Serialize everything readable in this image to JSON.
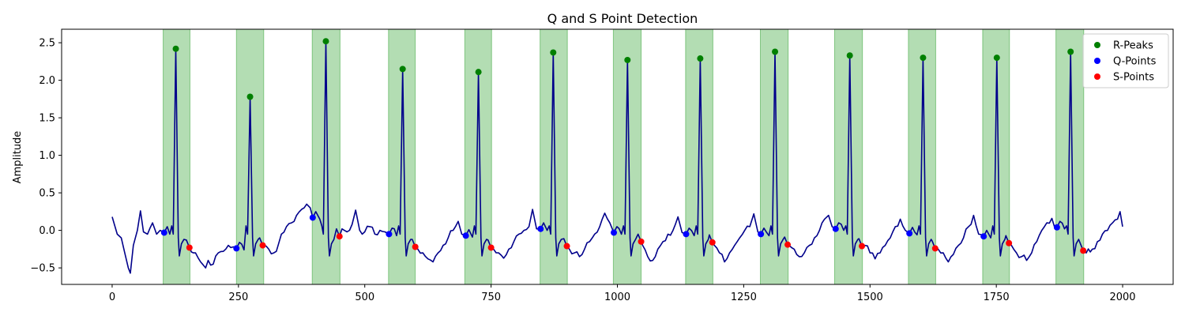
{
  "chart_data": {
    "type": "line",
    "title": "Q and S Point Detection",
    "xlabel": "",
    "ylabel": "Amplitude",
    "xlim": [
      -100,
      2100
    ],
    "ylim": [
      -0.72,
      2.68
    ],
    "xticks": [
      0,
      250,
      500,
      750,
      1000,
      1250,
      1500,
      1750,
      2000
    ],
    "yticks": [
      -0.5,
      0.0,
      0.5,
      1.0,
      1.5,
      2.0,
      2.5
    ],
    "ytick_labels": [
      "−0.5",
      "0.0",
      "0.5",
      "1.0",
      "1.5",
      "2.0",
      "2.5"
    ],
    "grid": false,
    "legend_position": "top-right",
    "colors": {
      "signal": "#00008b",
      "band": "#2ca02c",
      "r_peaks": "#008000",
      "q_points": "#0000ff",
      "s_points": "#ff0000"
    },
    "shaded_regions": [
      [
        101,
        154
      ],
      [
        246,
        300
      ],
      [
        396,
        451
      ],
      [
        547,
        600
      ],
      [
        698,
        751
      ],
      [
        847,
        901
      ],
      [
        992,
        1047
      ],
      [
        1135,
        1189
      ],
      [
        1283,
        1338
      ],
      [
        1430,
        1485
      ],
      [
        1576,
        1630
      ],
      [
        1723,
        1776
      ],
      [
        1868,
        1923
      ]
    ],
    "r_peaks": [
      [
        126,
        2.42
      ],
      [
        273,
        1.78
      ],
      [
        423,
        2.52
      ],
      [
        575,
        2.15
      ],
      [
        725,
        2.11
      ],
      [
        873,
        2.37
      ],
      [
        1020,
        2.27
      ],
      [
        1164,
        2.29
      ],
      [
        1312,
        2.38
      ],
      [
        1460,
        2.33
      ],
      [
        1605,
        2.3
      ],
      [
        1751,
        2.3
      ],
      [
        1897,
        2.38
      ]
    ],
    "q_points": [
      [
        103,
        -0.03
      ],
      [
        246,
        -0.24
      ],
      [
        397,
        0.17
      ],
      [
        548,
        -0.05
      ],
      [
        700,
        -0.07
      ],
      [
        848,
        0.02
      ],
      [
        993,
        -0.03
      ],
      [
        1136,
        -0.05
      ],
      [
        1284,
        -0.05
      ],
      [
        1432,
        0.02
      ],
      [
        1578,
        -0.04
      ],
      [
        1725,
        -0.08
      ],
      [
        1870,
        0.04
      ]
    ],
    "s_points": [
      [
        153,
        -0.23
      ],
      [
        298,
        -0.2
      ],
      [
        450,
        -0.08
      ],
      [
        600,
        -0.22
      ],
      [
        750,
        -0.23
      ],
      [
        900,
        -0.21
      ],
      [
        1047,
        -0.15
      ],
      [
        1188,
        -0.16
      ],
      [
        1337,
        -0.19
      ],
      [
        1484,
        -0.21
      ],
      [
        1629,
        -0.24
      ],
      [
        1775,
        -0.17
      ],
      [
        1922,
        -0.27
      ]
    ],
    "series": [
      {
        "name": "R-Peaks",
        "marker": "dot",
        "color": "#008000"
      },
      {
        "name": "Q-Points",
        "marker": "dot",
        "color": "#0000ff"
      },
      {
        "name": "S-Points",
        "marker": "dot",
        "color": "#ff0000"
      }
    ],
    "signal_baseline": [
      [
        0,
        0.18
      ],
      [
        10,
        -0.05
      ],
      [
        18,
        -0.1
      ],
      [
        25,
        -0.3
      ],
      [
        32,
        -0.5
      ],
      [
        36,
        -0.57
      ],
      [
        42,
        -0.2
      ],
      [
        50,
        0.0
      ],
      [
        56,
        0.26
      ],
      [
        62,
        -0.02
      ],
      [
        70,
        -0.05
      ],
      [
        80,
        0.1
      ],
      [
        88,
        -0.05
      ],
      [
        95,
        0.0
      ],
      [
        150,
        -0.25
      ],
      [
        165,
        -0.3
      ],
      [
        175,
        -0.42
      ],
      [
        185,
        -0.5
      ],
      [
        190,
        -0.4
      ],
      [
        200,
        -0.45
      ],
      [
        210,
        -0.3
      ],
      [
        220,
        -0.28
      ],
      [
        230,
        -0.2
      ],
      [
        240,
        -0.22
      ],
      [
        300,
        -0.2
      ],
      [
        310,
        -0.25
      ],
      [
        320,
        -0.3
      ],
      [
        325,
        -0.28
      ],
      [
        335,
        -0.05
      ],
      [
        345,
        0.05
      ],
      [
        355,
        0.1
      ],
      [
        365,
        0.2
      ],
      [
        375,
        0.28
      ],
      [
        380,
        0.3
      ],
      [
        385,
        0.35
      ],
      [
        392,
        0.3
      ],
      [
        455,
        0.02
      ],
      [
        465,
        -0.02
      ],
      [
        475,
        0.08
      ],
      [
        482,
        0.27
      ],
      [
        490,
        0.0
      ],
      [
        500,
        -0.02
      ],
      [
        510,
        0.05
      ],
      [
        520,
        -0.05
      ],
      [
        530,
        0.0
      ],
      [
        540,
        -0.02
      ],
      [
        605,
        -0.25
      ],
      [
        615,
        -0.3
      ],
      [
        625,
        -0.38
      ],
      [
        635,
        -0.42
      ],
      [
        645,
        -0.3
      ],
      [
        655,
        -0.2
      ],
      [
        665,
        -0.1
      ],
      [
        675,
        0.0
      ],
      [
        685,
        0.12
      ],
      [
        692,
        -0.05
      ],
      [
        755,
        -0.25
      ],
      [
        765,
        -0.3
      ],
      [
        775,
        -0.37
      ],
      [
        785,
        -0.25
      ],
      [
        795,
        -0.15
      ],
      [
        805,
        -0.05
      ],
      [
        815,
        0.0
      ],
      [
        825,
        0.05
      ],
      [
        832,
        0.28
      ],
      [
        840,
        0.02
      ],
      [
        905,
        -0.25
      ],
      [
        915,
        -0.3
      ],
      [
        925,
        -0.35
      ],
      [
        935,
        -0.25
      ],
      [
        945,
        -0.15
      ],
      [
        955,
        -0.05
      ],
      [
        965,
        0.05
      ],
      [
        975,
        0.23
      ],
      [
        985,
        0.1
      ],
      [
        1050,
        -0.2
      ],
      [
        1060,
        -0.35
      ],
      [
        1070,
        -0.4
      ],
      [
        1080,
        -0.25
      ],
      [
        1090,
        -0.15
      ],
      [
        1100,
        -0.05
      ],
      [
        1110,
        0.0
      ],
      [
        1120,
        0.18
      ],
      [
        1128,
        -0.03
      ],
      [
        1192,
        -0.2
      ],
      [
        1202,
        -0.3
      ],
      [
        1212,
        -0.42
      ],
      [
        1222,
        -0.3
      ],
      [
        1232,
        -0.2
      ],
      [
        1242,
        -0.1
      ],
      [
        1252,
        0.0
      ],
      [
        1262,
        0.05
      ],
      [
        1270,
        0.22
      ],
      [
        1278,
        -0.02
      ],
      [
        1340,
        -0.2
      ],
      [
        1350,
        -0.25
      ],
      [
        1360,
        -0.35
      ],
      [
        1370,
        -0.3
      ],
      [
        1380,
        -0.2
      ],
      [
        1390,
        -0.1
      ],
      [
        1400,
        0.0
      ],
      [
        1410,
        0.15
      ],
      [
        1418,
        0.2
      ],
      [
        1425,
        0.05
      ],
      [
        1490,
        -0.2
      ],
      [
        1500,
        -0.3
      ],
      [
        1510,
        -0.38
      ],
      [
        1520,
        -0.3
      ],
      [
        1530,
        -0.2
      ],
      [
        1540,
        -0.1
      ],
      [
        1550,
        0.05
      ],
      [
        1560,
        0.15
      ],
      [
        1570,
        0.0
      ],
      [
        1635,
        -0.25
      ],
      [
        1645,
        -0.3
      ],
      [
        1655,
        -0.42
      ],
      [
        1665,
        -0.32
      ],
      [
        1675,
        -0.2
      ],
      [
        1685,
        -0.1
      ],
      [
        1695,
        0.05
      ],
      [
        1705,
        0.2
      ],
      [
        1715,
        -0.05
      ],
      [
        1780,
        -0.2
      ],
      [
        1790,
        -0.3
      ],
      [
        1800,
        -0.35
      ],
      [
        1810,
        -0.4
      ],
      [
        1820,
        -0.3
      ],
      [
        1830,
        -0.15
      ],
      [
        1840,
        0.0
      ],
      [
        1850,
        0.1
      ],
      [
        1860,
        0.16
      ],
      [
        1865,
        0.05
      ],
      [
        1928,
        -0.3
      ],
      [
        1940,
        -0.25
      ],
      [
        1950,
        -0.15
      ],
      [
        1960,
        -0.05
      ],
      [
        1970,
        0.0
      ],
      [
        1980,
        0.1
      ],
      [
        1990,
        0.15
      ],
      [
        1995,
        0.25
      ],
      [
        2000,
        0.05
      ]
    ]
  }
}
